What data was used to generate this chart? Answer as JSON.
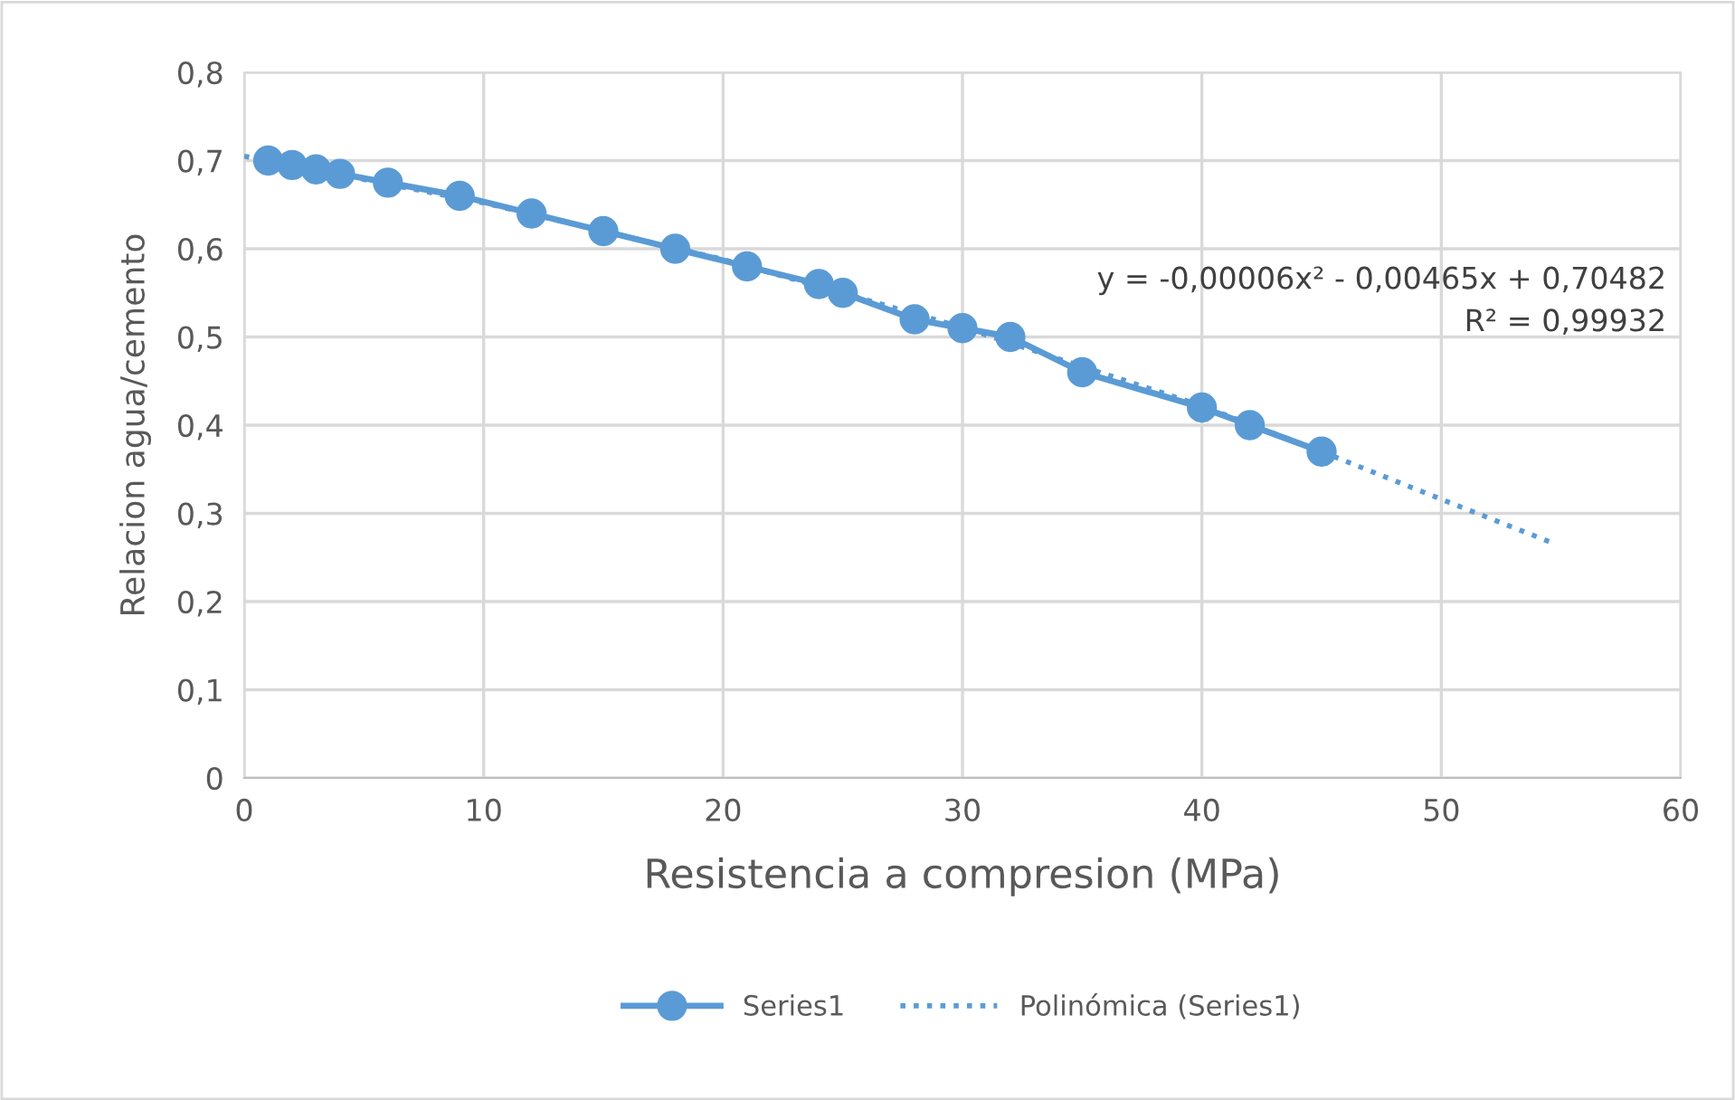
{
  "chart_data": {
    "type": "line",
    "xlabel": "Resistencia a compresion (MPa)",
    "ylabel": "Relacion agua/cemento",
    "series": [
      {
        "name": "Series1",
        "color": "#5b9bd5",
        "marker": "circle",
        "line_style": "solid",
        "x": [
          1,
          2,
          3,
          4,
          6,
          9,
          12,
          15,
          18,
          21,
          24,
          25,
          28,
          30,
          32,
          35,
          40,
          42,
          45
        ],
        "values": [
          0.7,
          0.695,
          0.69,
          0.685,
          0.675,
          0.66,
          0.64,
          0.62,
          0.6,
          0.58,
          0.56,
          0.55,
          0.52,
          0.51,
          0.5,
          0.46,
          0.42,
          0.4,
          0.37
        ]
      },
      {
        "name": "Polinómica (Series1)",
        "color": "#5b9bd5",
        "marker": "none",
        "line_style": "dotted",
        "x": [
          0,
          10,
          20,
          30,
          40,
          45,
          50,
          54.6
        ],
        "values": [
          0.705,
          0.652,
          0.588,
          0.511,
          0.422,
          0.37,
          0.316,
          0.267
        ]
      }
    ],
    "xlim": [
      0,
      60
    ],
    "xticks": [
      0,
      10,
      20,
      30,
      40,
      50,
      60
    ],
    "ylim": [
      0,
      0.8
    ],
    "yticks": [
      0,
      {
        "value": 0.1,
        "label": "0,1"
      },
      {
        "value": 0.2,
        "label": "0,2"
      },
      {
        "value": 0.3,
        "label": "0,3"
      },
      {
        "value": 0.4,
        "label": "0,4"
      },
      {
        "value": 0.5,
        "label": "0,5"
      },
      {
        "value": 0.6,
        "label": "0,6"
      },
      {
        "value": 0.7,
        "label": "0,7"
      },
      {
        "value": 0.8,
        "label": "0,8"
      }
    ],
    "annotations": [
      "y = -0,00006x² - 0,00465x + 0,70482",
      "R² = 0,99932"
    ],
    "grid": true,
    "legend": "bottom"
  }
}
